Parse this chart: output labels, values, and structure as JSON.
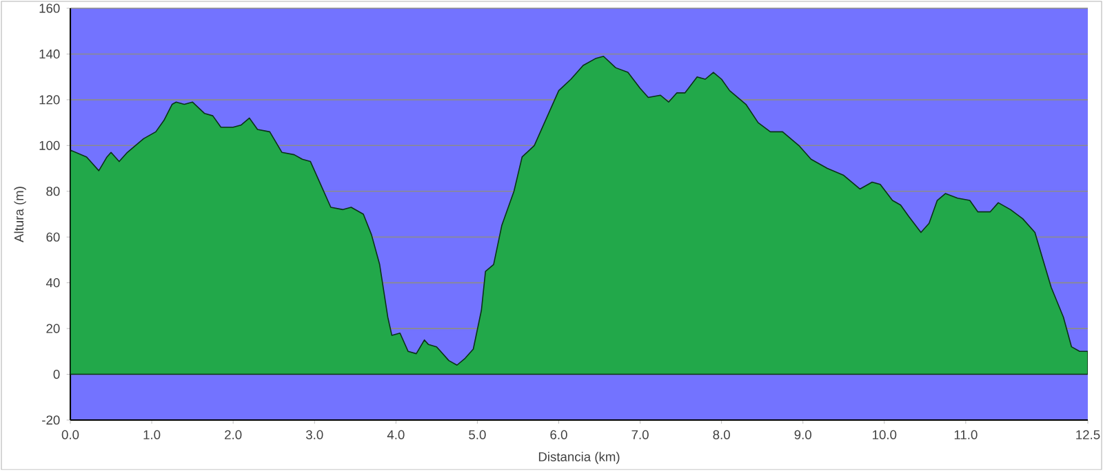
{
  "chart_data": {
    "type": "area",
    "xlabel": "Distancia   (km)",
    "ylabel": "Altura (m)",
    "xlim": [
      0,
      12.5
    ],
    "ylim": [
      -20,
      160
    ],
    "xticks": [
      {
        "value": 0,
        "label": "0.0"
      },
      {
        "value": 1,
        "label": "1.0"
      },
      {
        "value": 2,
        "label": "2.0"
      },
      {
        "value": 3,
        "label": "3.0"
      },
      {
        "value": 4,
        "label": "4.0"
      },
      {
        "value": 5,
        "label": "5.0"
      },
      {
        "value": 6,
        "label": "6.0"
      },
      {
        "value": 7,
        "label": "7.0"
      },
      {
        "value": 8,
        "label": "8.0"
      },
      {
        "value": 9,
        "label": "9.0"
      },
      {
        "value": 10,
        "label": "10.0"
      },
      {
        "value": 11,
        "label": "11.0"
      },
      {
        "value": 12.5,
        "label": "12.5"
      }
    ],
    "yticks": [
      -20,
      0,
      20,
      40,
      60,
      80,
      100,
      120,
      140,
      160
    ],
    "grid": "y",
    "legend": false,
    "series": [
      {
        "color": "#22a84a",
        "x": [
          0,
          0.2,
          0.35,
          0.45,
          0.5,
          0.6,
          0.7,
          0.9,
          1.05,
          1.15,
          1.25,
          1.3,
          1.4,
          1.5,
          1.65,
          1.75,
          1.85,
          2.0,
          2.1,
          2.2,
          2.3,
          2.45,
          2.6,
          2.75,
          2.85,
          2.95,
          3.05,
          3.2,
          3.35,
          3.45,
          3.6,
          3.7,
          3.8,
          3.9,
          3.95,
          4.05,
          4.15,
          4.25,
          4.35,
          4.4,
          4.5,
          4.65,
          4.75,
          4.85,
          4.95,
          5.05,
          5.1,
          5.2,
          5.3,
          5.45,
          5.55,
          5.7,
          5.85,
          6.0,
          6.15,
          6.3,
          6.45,
          6.55,
          6.7,
          6.85,
          7.0,
          7.1,
          7.25,
          7.35,
          7.45,
          7.55,
          7.7,
          7.8,
          7.9,
          8.0,
          8.1,
          8.3,
          8.45,
          8.6,
          8.75,
          8.95,
          9.1,
          9.3,
          9.5,
          9.7,
          9.85,
          9.95,
          10.1,
          10.2,
          10.3,
          10.45,
          10.55,
          10.65,
          10.75,
          10.9,
          11.05,
          11.15,
          11.3,
          11.4,
          11.55,
          11.7,
          11.85,
          11.95,
          12.05,
          12.2,
          12.3,
          12.4,
          12.5
        ],
        "values": [
          98,
          95,
          89,
          95,
          97,
          93,
          97,
          103,
          106,
          111,
          118,
          119,
          118,
          119,
          114,
          113,
          108,
          108,
          109,
          112,
          107,
          106,
          97,
          96,
          94,
          93,
          85,
          73,
          72,
          73,
          70,
          61,
          48,
          25,
          17,
          18,
          10,
          9,
          15,
          13,
          12,
          6,
          4,
          7,
          11,
          28,
          45,
          48,
          65,
          80,
          95,
          100,
          112,
          124,
          129,
          135,
          138,
          139,
          134,
          132,
          125,
          121,
          122,
          119,
          123,
          123,
          130,
          129,
          132,
          129,
          124,
          118,
          110,
          106,
          106,
          100,
          94,
          90,
          87,
          81,
          84,
          83,
          76,
          74,
          69,
          62,
          66,
          76,
          79,
          77,
          76,
          71,
          71,
          75,
          72,
          68,
          62,
          50,
          38,
          25,
          12,
          10,
          10
        ]
      }
    ]
  }
}
